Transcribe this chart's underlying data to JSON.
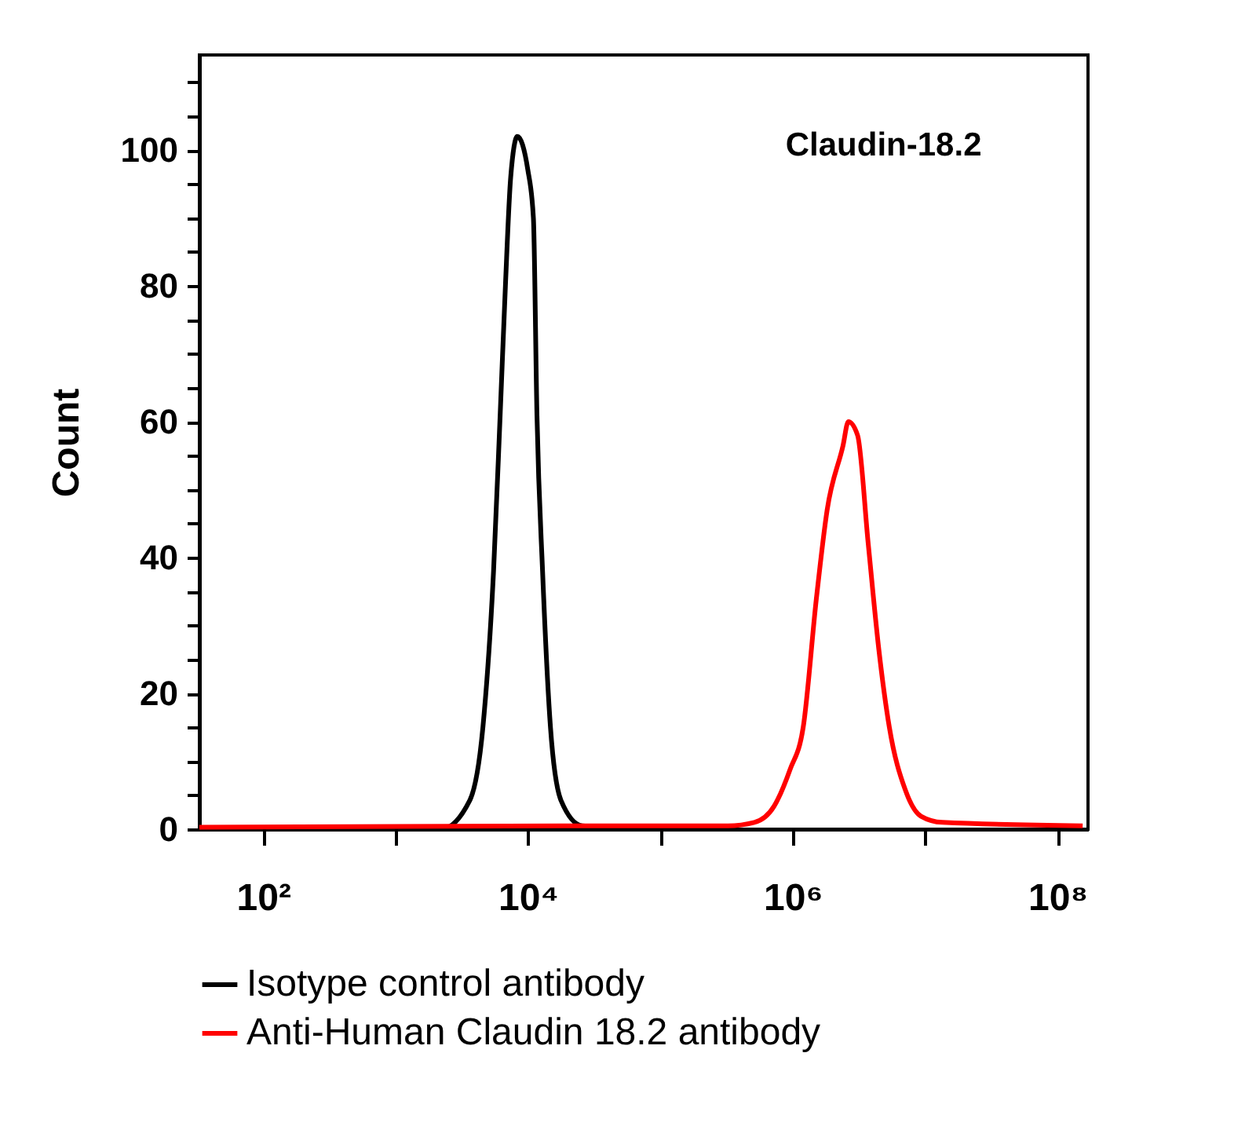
{
  "chart_data": {
    "type": "line",
    "ylabel": "Count",
    "annotations": [
      "Claudin-18.2"
    ],
    "log": "x",
    "xlim": [
      33,
      170000000
    ],
    "ylim": [
      0,
      114
    ],
    "xticks": [
      {
        "value": 100,
        "label": "10²"
      },
      {
        "value": 1000,
        "label": null
      },
      {
        "value": 10000,
        "label": "10⁴"
      },
      {
        "value": 100000,
        "label": null
      },
      {
        "value": 1000000,
        "label": "10⁶"
      },
      {
        "value": 10000000,
        "label": null
      },
      {
        "value": 100000000,
        "label": "10⁸"
      }
    ],
    "yticks": [
      0,
      {
        "value": 5,
        "label": null
      },
      {
        "value": 10,
        "label": null
      },
      {
        "value": 15,
        "label": null
      },
      20,
      {
        "value": 25,
        "label": null
      },
      {
        "value": 30,
        "label": null
      },
      {
        "value": 35,
        "label": null
      },
      40,
      {
        "value": 45,
        "label": null
      },
      {
        "value": 50,
        "label": null
      },
      {
        "value": 55,
        "label": null
      },
      60,
      {
        "value": 65,
        "label": null
      },
      {
        "value": 70,
        "label": null
      },
      {
        "value": 75,
        "label": null
      },
      80,
      {
        "value": 85,
        "label": null
      },
      {
        "value": 90,
        "label": null
      },
      {
        "value": 95,
        "label": null
      },
      100,
      {
        "value": 105,
        "label": null
      },
      {
        "value": 110,
        "label": null
      }
    ],
    "grid": false,
    "legend": "bottom",
    "marker": "none",
    "line_style": "solid",
    "series": [
      {
        "name": "Isotype control antibody",
        "color": "#000000",
        "x": [
          33,
          1000,
          2210,
          3630,
          4570,
          5500,
          6170,
          6760,
          7410,
          8320,
          10000,
          11000,
          11700,
          12900,
          14800,
          17800,
          25700,
          100000
        ],
        "values": [
          0,
          0,
          0,
          4.2,
          15,
          38,
          61,
          80,
          96,
          102,
          97,
          90,
          61,
          38,
          15,
          4.2,
          0.5,
          0
        ]
      },
      {
        "name": "Anti-Human Claudin 18.2 antibody",
        "color": "#ff0000",
        "x": [
          33,
          100000,
          324000,
          513000,
          724000,
          955000,
          1200000,
          1510000,
          1820000,
          2400000,
          2630000,
          3090000,
          3720000,
          4470000,
          5370000,
          7080000,
          9330000,
          13500000,
          155000000
        ],
        "values": [
          0.3,
          0.5,
          0.5,
          1,
          3.4,
          8.8,
          15,
          34,
          47,
          56.5,
          60,
          58,
          42,
          26.5,
          15,
          5.8,
          1.9,
          1,
          0.5
        ]
      }
    ]
  }
}
